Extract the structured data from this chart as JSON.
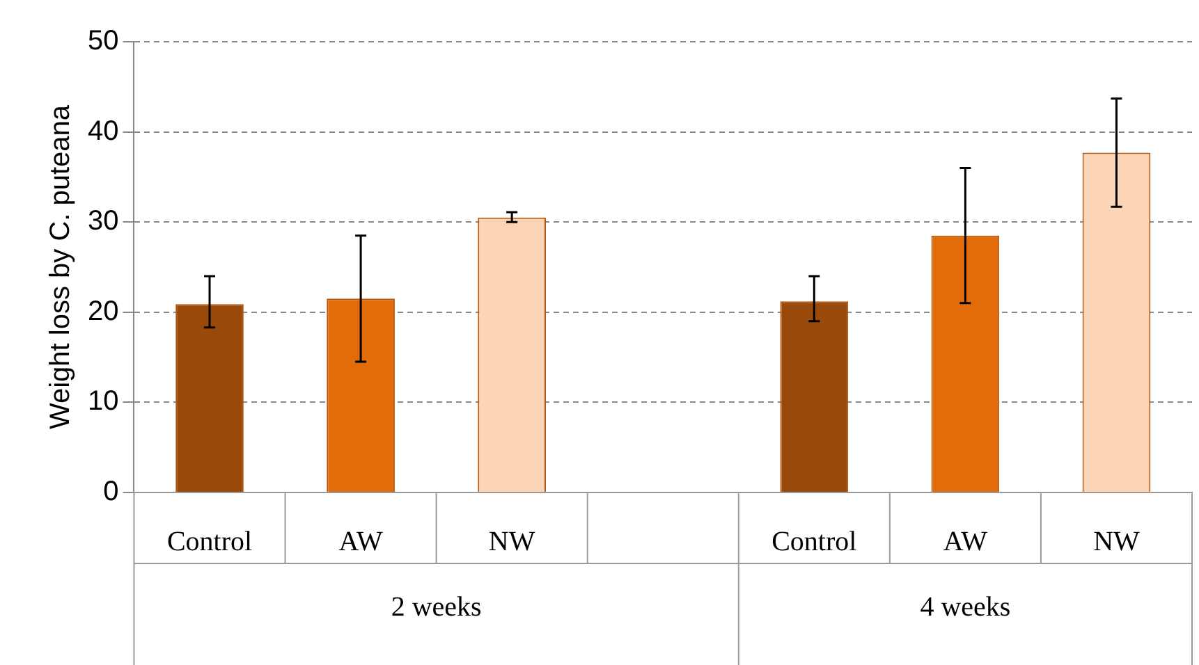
{
  "chart_data": {
    "type": "bar",
    "ylabel": "Weight loss by C. puteana",
    "categories": [
      "Control",
      "AW",
      "NW",
      null,
      "Control",
      "AW",
      "NW"
    ],
    "values": [
      20.9,
      21.5,
      30.5,
      null,
      21.2,
      28.5,
      37.7
    ],
    "colors": [
      "#994a0a",
      "#e36c0a",
      "#fbd5b5",
      null,
      "#994a0a",
      "#e36c0a",
      "#fbd5b5"
    ],
    "errors": [
      [
        18.3,
        24
      ],
      [
        14.5,
        28.5
      ],
      [
        30,
        31.1
      ],
      null,
      [
        19,
        24
      ],
      [
        21,
        36
      ],
      [
        31.7,
        43.7
      ]
    ],
    "annotations": [
      "2 weeks",
      "4 weeks"
    ],
    "ylim": [
      0,
      50
    ],
    "yticks": [
      0,
      10,
      20,
      30,
      40,
      50
    ],
    "grid": "y",
    "legend": false
  }
}
